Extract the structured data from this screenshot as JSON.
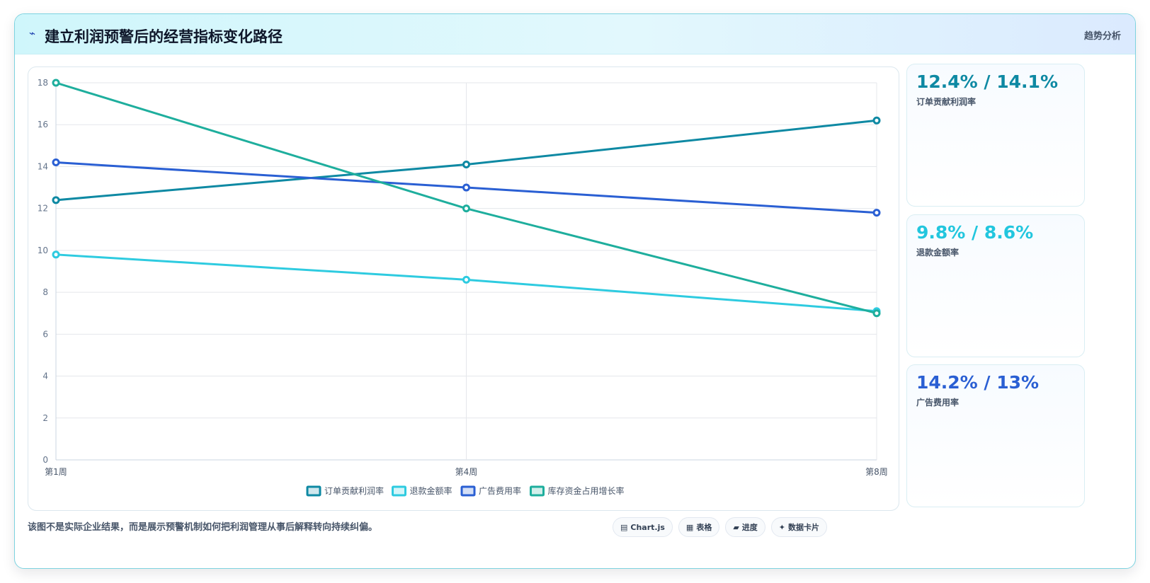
{
  "header": {
    "icon": "⌁",
    "title": "建立利润预警后的经营指标变化路径",
    "tag": "趋势分析"
  },
  "stats": [
    {
      "value": "12.4% / 14.1%",
      "label": "订单贡献利润率",
      "color": "#0e89a3"
    },
    {
      "value": "9.8% / 8.6%",
      "label": "退款金额率",
      "color": "#22c6de"
    },
    {
      "value": "14.2% / 13%",
      "label": "广告费用率",
      "color": "#2a5fd3"
    }
  ],
  "footnote": "该图不是实际企业结果，而是展示预警机制如何把利润管理从事后解释转向持续纠偏。",
  "pills": [
    {
      "icon": "▤",
      "label": "Chart.js"
    },
    {
      "icon": "▦",
      "label": "表格"
    },
    {
      "icon": "▰",
      "label": "进度"
    },
    {
      "icon": "✦",
      "label": "数据卡片"
    }
  ],
  "chart_data": {
    "type": "line",
    "categories": [
      "第1周",
      "第4周",
      "第8周"
    ],
    "series": [
      {
        "name": "订单贡献利润率",
        "values": [
          12.4,
          14.1,
          16.2
        ],
        "color": "#0e89a3"
      },
      {
        "name": "退款金额率",
        "values": [
          9.8,
          8.6,
          7.1
        ],
        "color": "#2ecbe0"
      },
      {
        "name": "广告费用率",
        "values": [
          14.2,
          13.0,
          11.8
        ],
        "color": "#2a5fd3"
      },
      {
        "name": "库存资金占用增长率",
        "values": [
          18.0,
          12.0,
          7.0
        ],
        "color": "#1eae9d"
      }
    ],
    "ylim": [
      0,
      18
    ],
    "yticks": [
      0,
      2,
      4,
      6,
      8,
      10,
      12,
      14,
      16,
      18
    ],
    "grid": true,
    "legend": "bottom"
  }
}
